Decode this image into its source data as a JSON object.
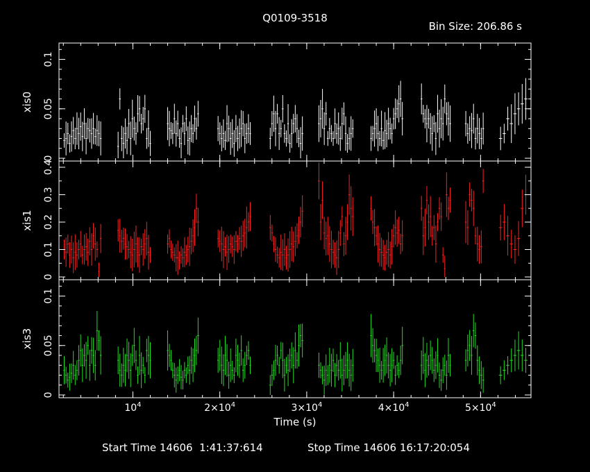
{
  "title": "Q0109-3518",
  "bin_size_label": "Bin Size: 206.86 s",
  "footer": {
    "start": "Start Time 14606  1:41:37:614",
    "stop": "Stop Time 14606 16:17:20:054"
  },
  "chart_data": {
    "type": "scatter",
    "xlabel": "Time (s)",
    "xlim": [
      1500,
      55800
    ],
    "x_ticks": [
      {
        "value": 10000,
        "label": "10^4",
        "mant": "",
        "exp": "4"
      },
      {
        "value": 20000,
        "label": "2×10^4",
        "mant": "2×",
        "exp": "4"
      },
      {
        "value": 30000,
        "label": "3×10^4",
        "mant": "3×",
        "exp": "4"
      },
      {
        "value": 40000,
        "label": "4×10^4",
        "mant": "4×",
        "exp": "4"
      },
      {
        "value": 50000,
        "label": "5×10^4",
        "mant": "5×",
        "exp": "4"
      }
    ],
    "panels": [
      {
        "name": "xis0",
        "color": "#ffffff",
        "ylim": [
          0,
          0.113
        ],
        "y_ticks": [
          {
            "value": 0,
            "label": "0"
          },
          {
            "value": 0.05,
            "label": "0.05"
          },
          {
            "value": 0.1,
            "label": "0.1"
          }
        ],
        "segments": [
          {
            "start": 2100,
            "end": 6300,
            "values": [
              0.018,
              0.02,
              0.025,
              0.015,
              0.022,
              0.028,
              0.02,
              0.03,
              0.025,
              0.032,
              0.022,
              0.035,
              0.02,
              0.03,
              0.028,
              0.025,
              0.03,
              0.022,
              0.028,
              0.025,
              0.02
            ]
          },
          {
            "start": 8300,
            "end": 12000,
            "values": [
              0.012,
              0.06,
              0.02,
              0.015,
              0.025,
              0.018,
              0.035,
              0.02,
              0.04,
              0.03,
              0.025,
              0.045,
              0.05,
              0.035,
              0.04,
              0.05,
              0.02,
              0.03,
              0.015
            ]
          },
          {
            "start": 14000,
            "end": 17500,
            "values": [
              0.035,
              0.03,
              0.028,
              0.025,
              0.04,
              0.025,
              0.035,
              0.02,
              0.015,
              0.035,
              0.025,
              0.04,
              0.018,
              0.02,
              0.03,
              0.025,
              0.04,
              0.03,
              0.045
            ]
          },
          {
            "start": 19800,
            "end": 23500,
            "values": [
              0.03,
              0.025,
              0.02,
              0.025,
              0.018,
              0.035,
              0.03,
              0.02,
              0.025,
              0.015,
              0.03,
              0.02,
              0.025,
              0.03,
              0.035,
              0.02,
              0.025,
              0.03,
              0.025
            ]
          },
          {
            "start": 25800,
            "end": 29500,
            "values": [
              0.02,
              0.035,
              0.045,
              0.03,
              0.045,
              0.025,
              0.03,
              0.05,
              0.025,
              0.02,
              0.035,
              0.015,
              0.025,
              0.035,
              0.04,
              0.03,
              0.02,
              0.015,
              0.025
            ]
          },
          {
            "start": 31400,
            "end": 35300,
            "values": [
              0.035,
              0.04,
              0.05,
              0.03,
              0.045,
              0.02,
              0.03,
              0.025,
              0.02,
              0.035,
              0.025,
              0.03,
              0.02,
              0.035,
              0.045,
              0.025,
              0.015,
              0.02,
              0.025,
              0.03
            ]
          },
          {
            "start": 37400,
            "end": 41000,
            "values": [
              0.02,
              0.025,
              0.03,
              0.035,
              0.025,
              0.02,
              0.03,
              0.018,
              0.028,
              0.025,
              0.035,
              0.03,
              0.025,
              0.04,
              0.045,
              0.05,
              0.055,
              0.06,
              0.04
            ]
          },
          {
            "start": 43200,
            "end": 46500,
            "values": [
              0.06,
              0.045,
              0.04,
              0.035,
              0.04,
              0.03,
              0.025,
              0.035,
              0.02,
              0.045,
              0.03,
              0.04,
              0.035,
              0.06,
              0.045,
              0.04,
              0.035
            ]
          },
          {
            "start": 48300,
            "end": 50300,
            "values": [
              0.035,
              0.025,
              0.03,
              0.028,
              0.04,
              0.02,
              0.03,
              0.025,
              0.02,
              0.03
            ]
          },
          {
            "start": 52300,
            "end": 55200,
            "values": [
              0.02,
              0.025,
              0.04,
              0.035,
              0.045,
              0.05,
              0.055,
              0.06
            ]
          }
        ]
      },
      {
        "name": "xis1",
        "color": "#ff2020",
        "ylim": [
          0,
          0.41
        ],
        "y_ticks": [
          {
            "value": 0,
            "label": "0"
          },
          {
            "value": 0.1,
            "label": "0.1"
          },
          {
            "value": 0.2,
            "label": "0.2"
          },
          {
            "value": 0.3,
            "label": "0.3"
          },
          {
            "value": 0.4,
            "label": "0.4"
          }
        ],
        "segments": [
          {
            "start": 2100,
            "end": 6300,
            "values": [
              0.1,
              0.09,
              0.12,
              0.08,
              0.1,
              0.07,
              0.09,
              0.08,
              0.1,
              0.12,
              0.08,
              0.1,
              0.11,
              0.09,
              0.13,
              0.1,
              0.15,
              0.12,
              0.1,
              0.02,
              0.14
            ]
          },
          {
            "start": 8300,
            "end": 12000,
            "values": [
              0.17,
              0.15,
              0.13,
              0.14,
              0.12,
              0.11,
              0.1,
              0.09,
              0.08,
              0.1,
              0.12,
              0.09,
              0.08,
              0.11,
              0.1,
              0.12,
              0.14,
              0.09,
              0.08
            ]
          },
          {
            "start": 14000,
            "end": 17500,
            "values": [
              0.12,
              0.14,
              0.1,
              0.09,
              0.08,
              0.07,
              0.07,
              0.06,
              0.08,
              0.07,
              0.09,
              0.08,
              0.1,
              0.11,
              0.13,
              0.15,
              0.18,
              0.25,
              0.2
            ]
          },
          {
            "start": 19800,
            "end": 23500,
            "values": [
              0.14,
              0.13,
              0.12,
              0.1,
              0.11,
              0.09,
              0.1,
              0.12,
              0.11,
              0.1,
              0.13,
              0.12,
              0.14,
              0.13,
              0.15,
              0.16,
              0.18,
              0.2,
              0.22
            ]
          },
          {
            "start": 25800,
            "end": 29500,
            "values": [
              0.18,
              0.16,
              0.12,
              0.1,
              0.08,
              0.07,
              0.09,
              0.08,
              0.1,
              0.07,
              0.08,
              0.1,
              0.12,
              0.11,
              0.13,
              0.15,
              0.17,
              0.2,
              0.24
            ]
          },
          {
            "start": 31400,
            "end": 35300,
            "values": [
              0.35,
              0.2,
              0.28,
              0.16,
              0.14,
              0.15,
              0.12,
              0.1,
              0.09,
              0.08,
              0.07,
              0.1,
              0.16,
              0.22,
              0.12,
              0.15,
              0.2,
              0.3,
              0.25,
              0.22
            ]
          },
          {
            "start": 37400,
            "end": 41000,
            "values": [
              0.25,
              0.2,
              0.18,
              0.15,
              0.12,
              0.1,
              0.09,
              0.08,
              0.07,
              0.09,
              0.1,
              0.08,
              0.11,
              0.15,
              0.18,
              0.16,
              0.17,
              0.12,
              0.15
            ]
          },
          {
            "start": 43200,
            "end": 46500,
            "values": [
              0.25,
              0.15,
              0.18,
              0.28,
              0.2,
              0.22,
              0.15,
              0.18,
              0.12,
              0.2,
              0.25,
              0.22,
              0.08,
              0.03,
              0.3,
              0.25,
              0.28
            ]
          },
          {
            "start": 48300,
            "end": 50300,
            "values": [
              0.2,
              0.18,
              0.3,
              0.28,
              0.25,
              0.15,
              0.12,
              0.1,
              0.11,
              0.35
            ]
          },
          {
            "start": 52300,
            "end": 55200,
            "values": [
              0.18,
              0.2,
              0.15,
              0.12,
              0.1,
              0.14,
              0.25,
              0.3
            ]
          }
        ]
      },
      {
        "name": "xis3",
        "color": "#20e020",
        "ylim": [
          0,
          0.113
        ],
        "y_ticks": [
          {
            "value": 0,
            "label": "0"
          },
          {
            "value": 0.05,
            "label": "0.05"
          },
          {
            "value": 0.1,
            "label": "0.1"
          }
        ],
        "segments": [
          {
            "start": 2100,
            "end": 6300,
            "values": [
              0.025,
              0.02,
              0.015,
              0.018,
              0.022,
              0.03,
              0.02,
              0.025,
              0.035,
              0.045,
              0.03,
              0.04,
              0.035,
              0.05,
              0.03,
              0.045,
              0.04,
              0.03,
              0.065,
              0.055,
              0.04
            ]
          },
          {
            "start": 8300,
            "end": 12000,
            "values": [
              0.035,
              0.025,
              0.02,
              0.03,
              0.025,
              0.04,
              0.035,
              0.025,
              0.04,
              0.05,
              0.035,
              0.02,
              0.04,
              0.025,
              0.03,
              0.02,
              0.045,
              0.04,
              0.035
            ]
          },
          {
            "start": 14000,
            "end": 17500,
            "values": [
              0.045,
              0.04,
              0.035,
              0.025,
              0.02,
              0.015,
              0.02,
              0.025,
              0.018,
              0.015,
              0.025,
              0.02,
              0.03,
              0.025,
              0.035,
              0.03,
              0.04,
              0.045,
              0.06
            ]
          },
          {
            "start": 19800,
            "end": 23500,
            "values": [
              0.035,
              0.04,
              0.03,
              0.025,
              0.04,
              0.035,
              0.02,
              0.03,
              0.025,
              0.02,
              0.04,
              0.035,
              0.03,
              0.045,
              0.025,
              0.03,
              0.04,
              0.045,
              0.03
            ]
          },
          {
            "start": 25800,
            "end": 29500,
            "values": [
              0.01,
              0.02,
              0.025,
              0.035,
              0.04,
              0.03,
              0.045,
              0.035,
              0.02,
              0.03,
              0.025,
              0.035,
              0.04,
              0.03,
              0.045,
              0.035,
              0.05,
              0.06,
              0.055
            ]
          },
          {
            "start": 31400,
            "end": 35300,
            "values": [
              0.03,
              0.025,
              0.02,
              0.015,
              0.025,
              0.02,
              0.03,
              0.025,
              0.035,
              0.02,
              0.03,
              0.025,
              0.035,
              0.02,
              0.025,
              0.03,
              0.035,
              0.025,
              0.02,
              0.03
            ]
          },
          {
            "start": 37400,
            "end": 41000,
            "values": [
              0.06,
              0.05,
              0.045,
              0.04,
              0.035,
              0.03,
              0.025,
              0.03,
              0.035,
              0.04,
              0.03,
              0.025,
              0.03,
              0.035,
              0.02,
              0.03,
              0.025,
              0.035,
              0.05
            ]
          },
          {
            "start": 43200,
            "end": 46500,
            "values": [
              0.03,
              0.04,
              0.025,
              0.035,
              0.03,
              0.04,
              0.035,
              0.025,
              0.03,
              0.04,
              0.02,
              0.015,
              0.025,
              0.03,
              0.02,
              0.04,
              0.03
            ]
          },
          {
            "start": 48300,
            "end": 50300,
            "values": [
              0.035,
              0.045,
              0.05,
              0.04,
              0.065,
              0.06,
              0.035,
              0.025,
              0.02,
              0.015
            ]
          },
          {
            "start": 52300,
            "end": 55200,
            "values": [
              0.02,
              0.025,
              0.03,
              0.035,
              0.04,
              0.045,
              0.04,
              0.035
            ]
          }
        ]
      }
    ]
  }
}
